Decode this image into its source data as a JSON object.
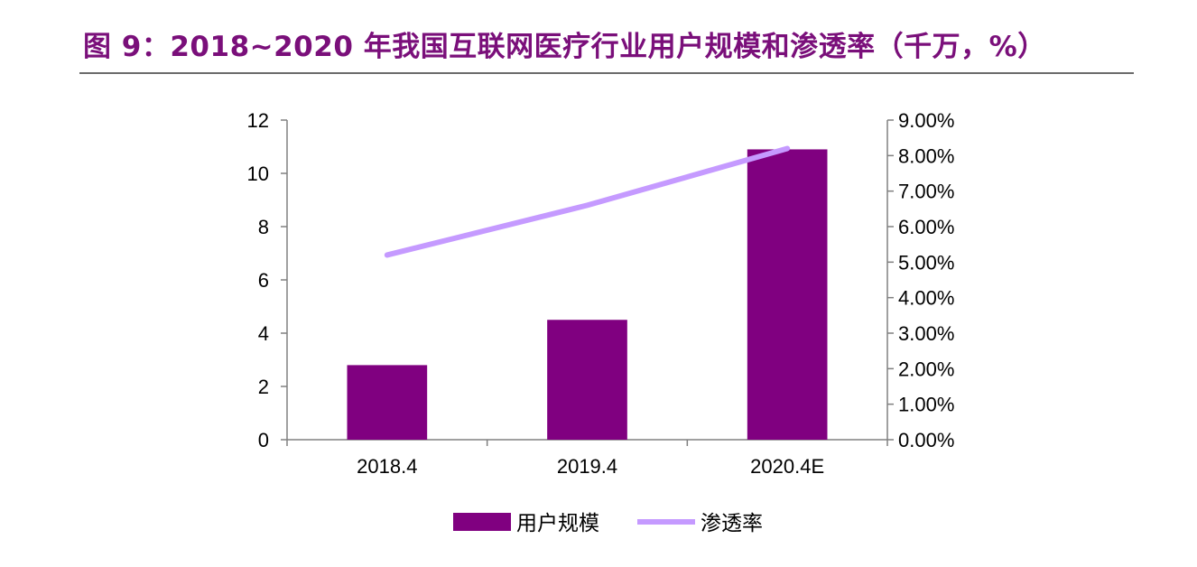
{
  "title": "图 9：2018~2020 年我国互联网医疗行业用户规模和渗透率（千万，%）",
  "chart_data": {
    "type": "bar+line",
    "categories": [
      "2018.4",
      "2019.4",
      "2020.4E"
    ],
    "series": [
      {
        "name": "用户规模",
        "type": "bar",
        "axis": "left",
        "values": [
          2.8,
          4.5,
          10.9
        ],
        "color": "#800080"
      },
      {
        "name": "渗透率",
        "type": "line",
        "axis": "right",
        "values": [
          5.2,
          6.6,
          8.2
        ],
        "color": "#c59aff"
      }
    ],
    "y_left": {
      "min": 0,
      "max": 12,
      "ticks": [
        "0",
        "2",
        "4",
        "6",
        "8",
        "10",
        "12"
      ]
    },
    "y_right": {
      "min": 0,
      "max": 9,
      "ticks": [
        "0.00%",
        "1.00%",
        "2.00%",
        "3.00%",
        "4.00%",
        "5.00%",
        "6.00%",
        "7.00%",
        "8.00%",
        "9.00%"
      ]
    },
    "legend_position": "bottom",
    "grid": false
  }
}
